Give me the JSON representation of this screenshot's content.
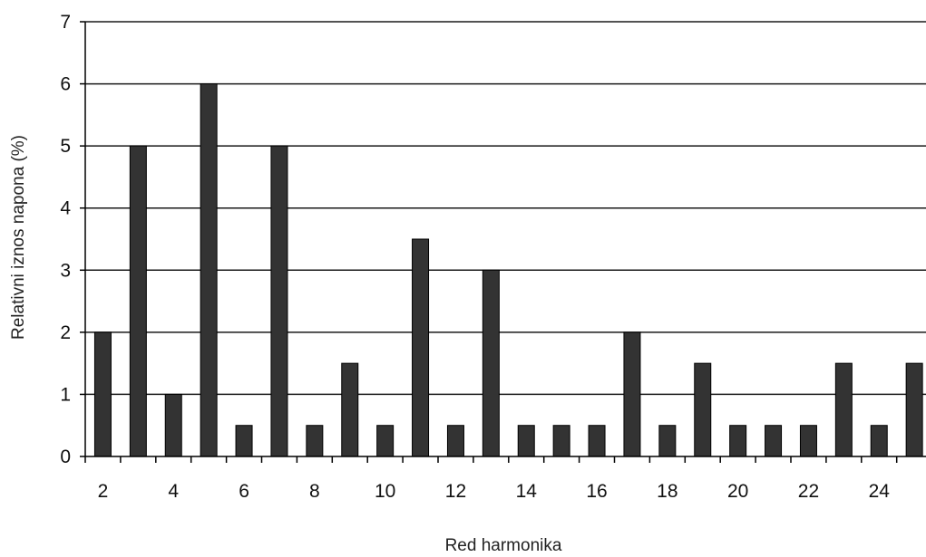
{
  "chart_data": {
    "type": "bar",
    "title": "",
    "xlabel": "Red harmonika",
    "ylabel": "Relativni iznos napona (%)",
    "ylim": [
      0,
      7
    ],
    "yticks": [
      0,
      1,
      2,
      3,
      4,
      5,
      6,
      7
    ],
    "xtick_labels": [
      2,
      4,
      6,
      8,
      10,
      12,
      14,
      16,
      18,
      20,
      22,
      24
    ],
    "grid": "horizontal",
    "legend": "none",
    "bar_color": "#333333",
    "categories": [
      2,
      3,
      4,
      5,
      6,
      7,
      8,
      9,
      10,
      11,
      12,
      13,
      14,
      15,
      16,
      17,
      18,
      19,
      20,
      21,
      22,
      23,
      24,
      25
    ],
    "values": [
      2,
      5,
      1,
      6,
      0.5,
      5,
      0.5,
      1.5,
      0.5,
      3.5,
      0.5,
      3,
      0.5,
      0.5,
      0.5,
      2,
      0.5,
      1.5,
      0.5,
      0.5,
      0.5,
      1.5,
      0.5,
      1.5
    ]
  }
}
